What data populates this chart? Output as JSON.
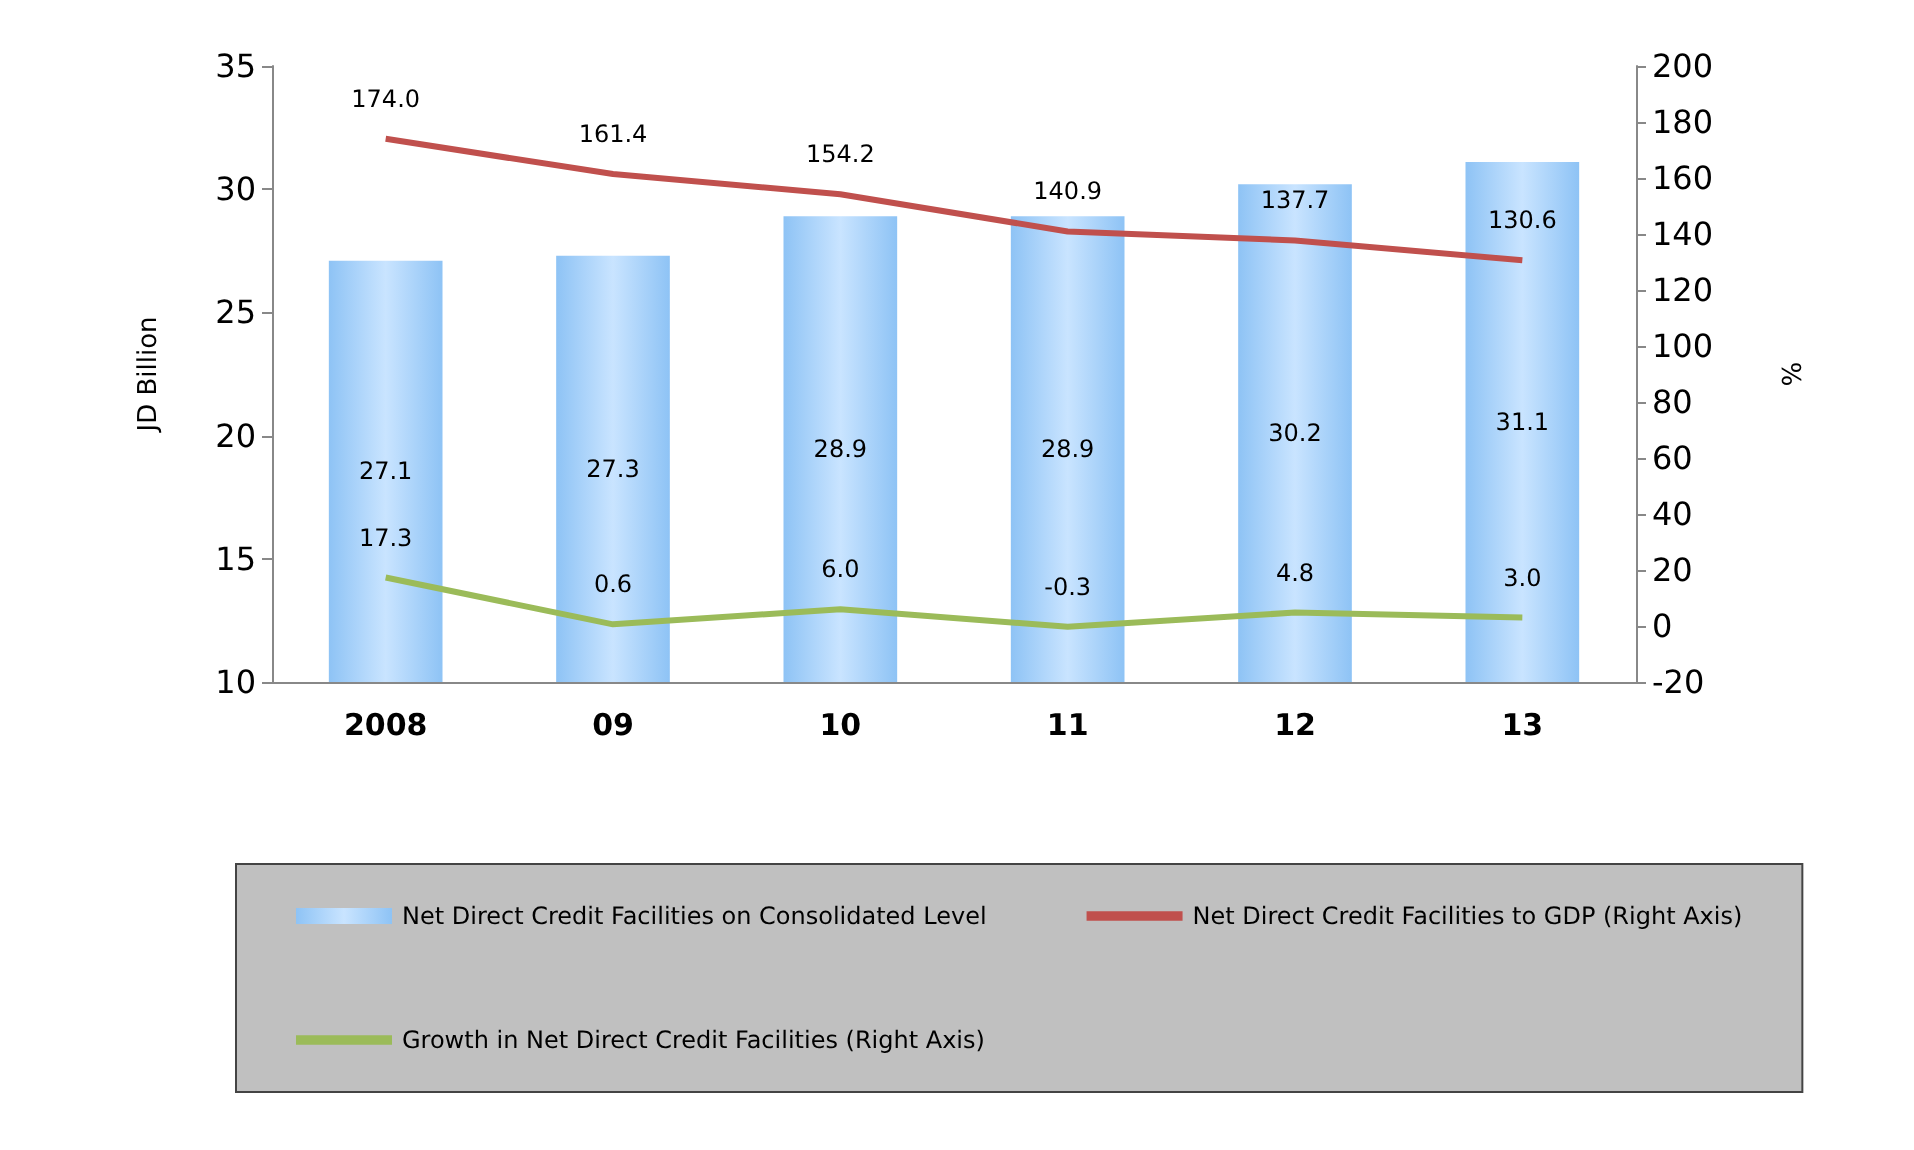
{
  "chart_data": {
    "type": "bar",
    "categories": [
      "2008",
      "09",
      "10",
      "11",
      "12",
      "13"
    ],
    "ylabel": "JD Billion",
    "y2label": "%",
    "ylim": [
      10,
      35
    ],
    "yticks": [
      10,
      15,
      20,
      25,
      30,
      35
    ],
    "y2lim": [
      -20,
      200
    ],
    "y2ticks": [
      -20,
      0,
      20,
      40,
      60,
      80,
      100,
      120,
      140,
      160,
      180,
      200
    ],
    "grid": false,
    "legend": "bottom",
    "marker": "none",
    "series": [
      {
        "name": "Net Direct Credit Facilities on Consolidated Level",
        "color": "#8ec3f5",
        "values": [
          27.1,
          27.3,
          28.9,
          28.9,
          30.2,
          31.1
        ],
        "value_labels": [
          "27.1",
          "27.3",
          "28.9",
          "28.9",
          "30.2",
          "31.1"
        ]
      },
      {
        "name": "Net Direct Credit Facilities to GDP (Right Axis)",
        "type": "line",
        "axis": "y2",
        "color": "#c0504d",
        "values": [
          174.0,
          161.4,
          154.2,
          140.9,
          137.7,
          130.6
        ],
        "value_labels": [
          "174.0",
          "161.4",
          "154.2",
          "140.9",
          "137.7",
          "130.6"
        ]
      },
      {
        "name": "Growth in Net Direct Credit Facilities (Right Axis)",
        "type": "line",
        "axis": "y2",
        "color": "#9bbb59",
        "values": [
          17.3,
          0.6,
          6.0,
          -0.3,
          4.8,
          3.0
        ],
        "value_labels": [
          "17.3",
          "0.6",
          "6.0",
          "-0.3",
          "4.8",
          "3.0"
        ]
      }
    ]
  }
}
